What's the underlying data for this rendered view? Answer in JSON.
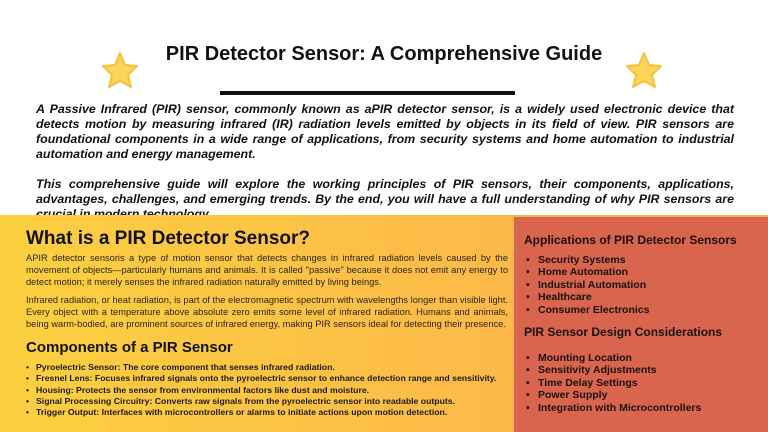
{
  "header": {
    "title": "PIR Detector Sensor: A Comprehensive Guide",
    "star_icon_color": "#fbd85a"
  },
  "intro": [
    "A Passive Infrared (PIR) sensor, commonly known as aPIR detector sensor, is a widely used electronic device that detects motion by measuring infrared (IR) radiation levels emitted by objects in its field of view. PIR sensors are foundational components in a wide range of applications, from security systems and home automation to industrial automation and energy management.",
    "This comprehensive guide will explore the working principles of PIR sensors, their components, applications, advantages, challenges, and emerging trends. By the end, you will have a full understanding of why PIR sensors are crucial in modern technology."
  ],
  "what": {
    "heading": "What is a PIR Detector Sensor?",
    "paragraphs": [
      "APIR detector sensoris a type of motion sensor that detects changes in infrared radiation levels caused by the movement of objects—particularly humans and animals. It is called \"passive\" because it does not emit any energy to detect motion; it merely senses the infrared radiation naturally emitted by living beings.",
      "Infrared radiation, or heat radiation, is part of the electromagnetic spectrum with wavelengths longer than visible light. Every object with a temperature above absolute zero emits some level of infrared radiation. Humans and animals, being warm-bodied, are prominent sources of infrared energy, making PIR sensors ideal for detecting their presence."
    ]
  },
  "components": {
    "heading": "Components of a PIR Sensor",
    "items": [
      "Pyroelectric Sensor: The core component that senses infrared radiation.",
      "Fresnel Lens: Focuses infrared signals onto the pyroelectric sensor to enhance detection range and sensitivity.",
      "Housing: Protects the sensor from environmental factors like dust and moisture.",
      "Signal Processing Circuitry: Converts raw signals from the pyroelectric sensor into readable outputs.",
      "Trigger Output: Interfaces with microcontrollers or alarms to initiate actions upon motion detection."
    ]
  },
  "applications": {
    "heading": "Applications of PIR Detector Sensors",
    "items": [
      "Security Systems",
      "Home Automation",
      "Industrial Automation",
      "Healthcare",
      "Consumer Electronics"
    ]
  },
  "design": {
    "heading": "PIR Sensor Design Considerations",
    "items": [
      "Mounting Location",
      "Sensitivity Adjustments",
      "Time Delay Settings",
      "Power Supply",
      "Integration with Microcontrollers"
    ]
  }
}
